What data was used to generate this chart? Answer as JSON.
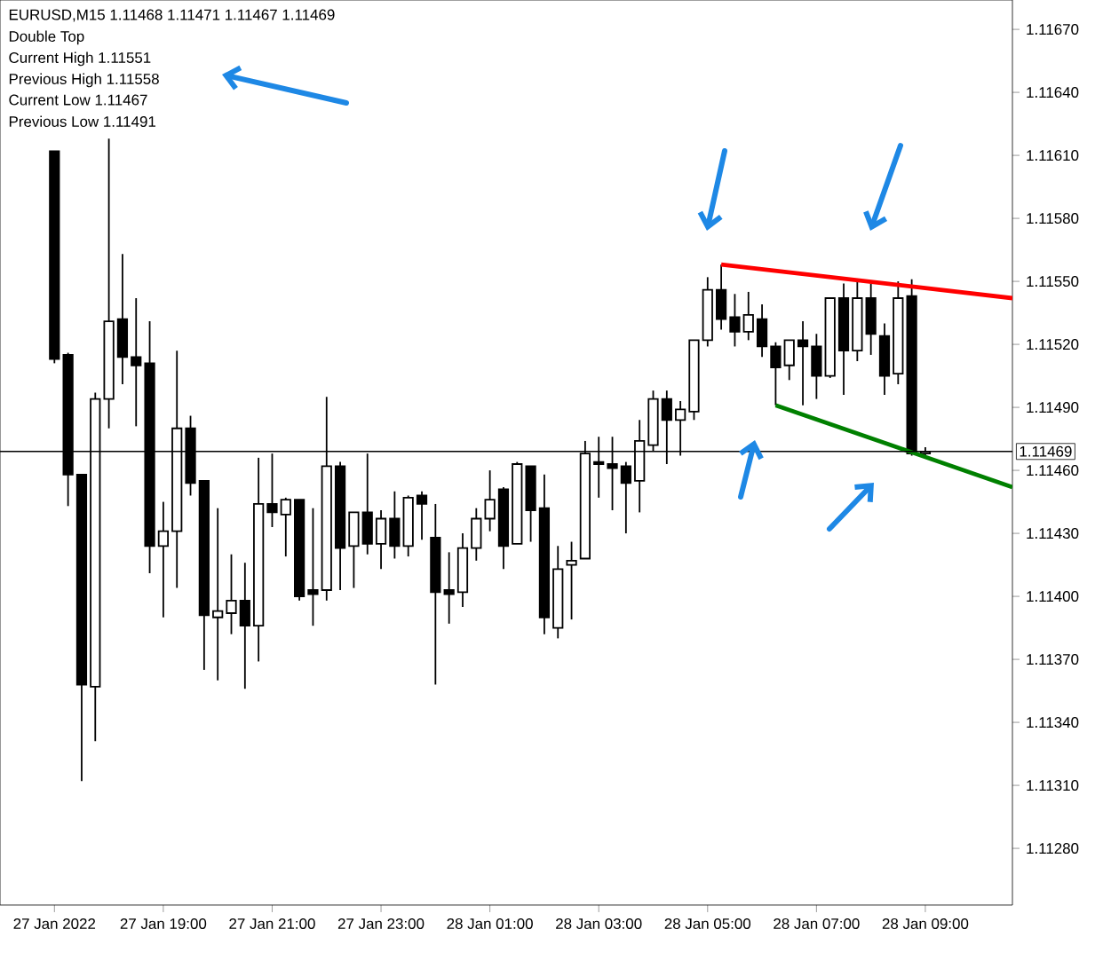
{
  "chart_data": {
    "type": "candlestick",
    "title": "EURUSD,M15 1.11468 1.11471 1.11467 1.11469",
    "annotations": [
      "Double Top",
      "Current High 1.11551",
      "Previous High 1.11558",
      "Current Low 1.11467",
      "Previous Low 1.11491"
    ],
    "x": [
      "2022-01-27T17:00",
      "2022-01-27T17:15",
      "2022-01-27T17:30",
      "2022-01-27T17:45",
      "2022-01-27T18:00",
      "2022-01-27T18:15",
      "2022-01-27T18:30",
      "2022-01-27T18:45",
      "2022-01-27T19:00",
      "2022-01-27T19:15",
      "2022-01-27T19:30",
      "2022-01-27T19:45",
      "2022-01-27T20:00",
      "2022-01-27T20:15",
      "2022-01-27T20:30",
      "2022-01-27T20:45",
      "2022-01-27T21:00",
      "2022-01-27T21:15",
      "2022-01-27T21:30",
      "2022-01-27T21:45",
      "2022-01-27T22:00",
      "2022-01-27T22:15",
      "2022-01-27T22:30",
      "2022-01-27T22:45",
      "2022-01-27T23:00",
      "2022-01-27T23:15",
      "2022-01-27T23:30",
      "2022-01-27T23:45",
      "2022-01-28T00:00",
      "2022-01-28T00:15",
      "2022-01-28T00:30",
      "2022-01-28T00:45",
      "2022-01-28T01:00",
      "2022-01-28T01:15",
      "2022-01-28T01:30",
      "2022-01-28T01:45",
      "2022-01-28T02:00",
      "2022-01-28T02:15",
      "2022-01-28T02:30",
      "2022-01-28T02:45",
      "2022-01-28T03:00",
      "2022-01-28T03:15",
      "2022-01-28T03:30",
      "2022-01-28T03:45",
      "2022-01-28T04:00",
      "2022-01-28T04:15",
      "2022-01-28T04:30",
      "2022-01-28T04:45",
      "2022-01-28T05:00",
      "2022-01-28T05:15",
      "2022-01-28T05:30",
      "2022-01-28T05:45",
      "2022-01-28T06:00",
      "2022-01-28T06:15",
      "2022-01-28T06:30",
      "2022-01-28T06:45",
      "2022-01-28T07:00",
      "2022-01-28T07:15",
      "2022-01-28T07:30",
      "2022-01-28T07:45",
      "2022-01-28T08:00",
      "2022-01-28T08:15",
      "2022-01-28T08:30",
      "2022-01-28T08:45",
      "2022-01-28T09:00"
    ],
    "ohlc": [
      [
        1.11612,
        1.11612,
        1.11511,
        1.11513
      ],
      [
        1.11515,
        1.11516,
        1.11443,
        1.11458
      ],
      [
        1.11458,
        1.11458,
        1.11312,
        1.11358
      ],
      [
        1.11357,
        1.11497,
        1.11331,
        1.11494
      ],
      [
        1.11494,
        1.11618,
        1.1148,
        1.11531
      ],
      [
        1.11532,
        1.11563,
        1.11501,
        1.11514
      ],
      [
        1.11514,
        1.11542,
        1.11481,
        1.1151
      ],
      [
        1.11511,
        1.11531,
        1.11411,
        1.11424
      ],
      [
        1.11424,
        1.11445,
        1.1139,
        1.11431
      ],
      [
        1.11431,
        1.11517,
        1.11404,
        1.1148
      ],
      [
        1.1148,
        1.11486,
        1.11448,
        1.11454
      ],
      [
        1.11455,
        1.11455,
        1.11365,
        1.11391
      ],
      [
        1.1139,
        1.11442,
        1.1136,
        1.11393
      ],
      [
        1.11392,
        1.1142,
        1.11382,
        1.11398
      ],
      [
        1.11398,
        1.11416,
        1.11356,
        1.11386
      ],
      [
        1.11386,
        1.11466,
        1.11369,
        1.11444
      ],
      [
        1.11444,
        1.11468,
        1.11433,
        1.1144
      ],
      [
        1.11439,
        1.11447,
        1.11419,
        1.11446
      ],
      [
        1.11446,
        1.11446,
        1.11398,
        1.114
      ],
      [
        1.11403,
        1.11442,
        1.11386,
        1.11401
      ],
      [
        1.11403,
        1.11495,
        1.11398,
        1.11462
      ],
      [
        1.11462,
        1.11464,
        1.11403,
        1.11423
      ],
      [
        1.11424,
        1.1144,
        1.11404,
        1.1144
      ],
      [
        1.1144,
        1.11468,
        1.1142,
        1.11425
      ],
      [
        1.11425,
        1.11441,
        1.11413,
        1.11437
      ],
      [
        1.11437,
        1.1145,
        1.11418,
        1.11424
      ],
      [
        1.11424,
        1.11448,
        1.11419,
        1.11447
      ],
      [
        1.11448,
        1.1145,
        1.11427,
        1.11444
      ],
      [
        1.11428,
        1.11444,
        1.11358,
        1.11402
      ],
      [
        1.11403,
        1.11421,
        1.11387,
        1.11401
      ],
      [
        1.11402,
        1.1143,
        1.11395,
        1.11423
      ],
      [
        1.11423,
        1.11442,
        1.11417,
        1.11437
      ],
      [
        1.11437,
        1.1146,
        1.11431,
        1.11446
      ],
      [
        1.11451,
        1.11452,
        1.11413,
        1.11424
      ],
      [
        1.11425,
        1.11464,
        1.11425,
        1.11463
      ],
      [
        1.11462,
        1.11462,
        1.11426,
        1.11441
      ],
      [
        1.11442,
        1.11458,
        1.11382,
        1.1139
      ],
      [
        1.11385,
        1.11424,
        1.1138,
        1.11413
      ],
      [
        1.11415,
        1.11426,
        1.11389,
        1.11417
      ],
      [
        1.11418,
        1.11474,
        1.11418,
        1.11468
      ],
      [
        1.11464,
        1.11476,
        1.11447,
        1.11463
      ],
      [
        1.11463,
        1.11476,
        1.11441,
        1.11461
      ],
      [
        1.11462,
        1.11464,
        1.1143,
        1.11454
      ],
      [
        1.11455,
        1.11484,
        1.1144,
        1.11474
      ],
      [
        1.11472,
        1.11498,
        1.11469,
        1.11494
      ],
      [
        1.11494,
        1.11498,
        1.11463,
        1.11484
      ],
      [
        1.11484,
        1.11493,
        1.11467,
        1.11489
      ],
      [
        1.11488,
        1.11522,
        1.11484,
        1.11522
      ],
      [
        1.11522,
        1.11552,
        1.11519,
        1.11546
      ],
      [
        1.11546,
        1.11558,
        1.11527,
        1.11532
      ],
      [
        1.11533,
        1.11544,
        1.11519,
        1.11526
      ],
      [
        1.11526,
        1.11545,
        1.11522,
        1.11534
      ],
      [
        1.11532,
        1.11539,
        1.11514,
        1.11519
      ],
      [
        1.11519,
        1.11521,
        1.11491,
        1.11509
      ],
      [
        1.1151,
        1.11522,
        1.11503,
        1.11522
      ],
      [
        1.11522,
        1.11531,
        1.11491,
        1.11519
      ],
      [
        1.11519,
        1.11525,
        1.11494,
        1.11505
      ],
      [
        1.11505,
        1.11542,
        1.11504,
        1.11542
      ],
      [
        1.11542,
        1.11549,
        1.11496,
        1.11517
      ],
      [
        1.11517,
        1.11551,
        1.11512,
        1.11542
      ],
      [
        1.11542,
        1.11549,
        1.11515,
        1.11525
      ],
      [
        1.11524,
        1.1153,
        1.11496,
        1.11505
      ],
      [
        1.11506,
        1.1155,
        1.11501,
        1.11542
      ],
      [
        1.11543,
        1.11551,
        1.11467,
        1.11468
      ],
      [
        1.11468,
        1.11471,
        1.11467,
        1.11469
      ]
    ],
    "series": [
      {
        "type": "line",
        "color": "#ff0000",
        "x": [
          "2022-01-28T05:15",
          "2022-01-28T10:36"
        ],
        "values": [
          1.11558,
          1.11542
        ]
      },
      {
        "type": "line",
        "color": "#008000",
        "x": [
          "2022-01-28T06:15",
          "2022-01-28T10:36"
        ],
        "values": [
          1.11491,
          1.11452
        ]
      }
    ],
    "ref_lines": [
      {
        "axis": "y",
        "value": 1.11469,
        "label": "1.11469",
        "color": "#000000"
      }
    ],
    "xlim": [
      "2022-01-27T16:00",
      "2022-01-28T10:36"
    ],
    "xticks": [
      {
        "value": "2022-01-27T17:00",
        "label": "27 Jan 2022"
      },
      {
        "value": "2022-01-27T19:00",
        "label": "27 Jan 19:00"
      },
      {
        "value": "2022-01-27T21:00",
        "label": "27 Jan 21:00"
      },
      {
        "value": "2022-01-27T23:00",
        "label": "27 Jan 23:00"
      },
      {
        "value": "2022-01-28T01:00",
        "label": "28 Jan 01:00"
      },
      {
        "value": "2022-01-28T03:00",
        "label": "28 Jan 03:00"
      },
      {
        "value": "2022-01-28T05:00",
        "label": "28 Jan 05:00"
      },
      {
        "value": "2022-01-28T07:00",
        "label": "28 Jan 07:00"
      },
      {
        "value": "2022-01-28T09:00",
        "label": "28 Jan 09:00"
      }
    ],
    "ylim": [
      1.11253,
      1.11684
    ],
    "yticks": [
      {
        "value": 1.1128,
        "label": "1.11280"
      },
      {
        "value": 1.1131,
        "label": "1.11310"
      },
      {
        "value": 1.1134,
        "label": "1.11340"
      },
      {
        "value": 1.1137,
        "label": "1.11370"
      },
      {
        "value": 1.114,
        "label": "1.11400"
      },
      {
        "value": 1.1143,
        "label": "1.11430"
      },
      {
        "value": 1.1146,
        "label": "1.11460"
      },
      {
        "value": 1.1149,
        "label": "1.11490"
      },
      {
        "value": 1.1152,
        "label": "1.11520"
      },
      {
        "value": 1.1155,
        "label": "1.11550"
      },
      {
        "value": 1.1158,
        "label": "1.11580"
      },
      {
        "value": 1.1161,
        "label": "1.11610"
      },
      {
        "value": 1.1164,
        "label": "1.11640"
      },
      {
        "value": 1.1167,
        "label": "1.11670"
      }
    ]
  }
}
